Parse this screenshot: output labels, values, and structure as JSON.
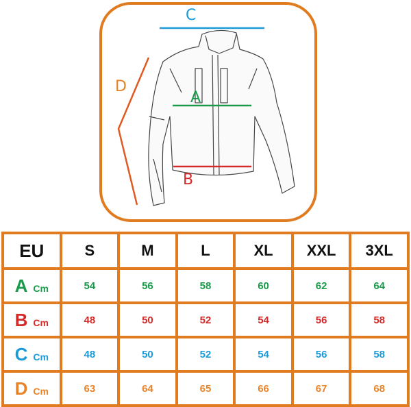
{
  "diagram": {
    "labels": {
      "A": "A",
      "B": "B",
      "C": "C",
      "D": "D"
    }
  },
  "colors": {
    "A": "#1a9a4a",
    "B": "#d42a2a",
    "C": "#1a9ad8",
    "D": "#e8832a",
    "frame": "#e07b20"
  },
  "table": {
    "header": [
      "EU",
      "S",
      "M",
      "L",
      "XL",
      "XXL",
      "3XL"
    ],
    "unit": "Cm",
    "rows": [
      {
        "key": "A",
        "values": [
          "54",
          "56",
          "58",
          "60",
          "62",
          "64"
        ]
      },
      {
        "key": "B",
        "values": [
          "48",
          "50",
          "52",
          "54",
          "56",
          "58"
        ]
      },
      {
        "key": "C",
        "values": [
          "48",
          "50",
          "52",
          "54",
          "56",
          "58"
        ]
      },
      {
        "key": "D",
        "values": [
          "63",
          "64",
          "65",
          "66",
          "67",
          "68"
        ]
      }
    ]
  }
}
